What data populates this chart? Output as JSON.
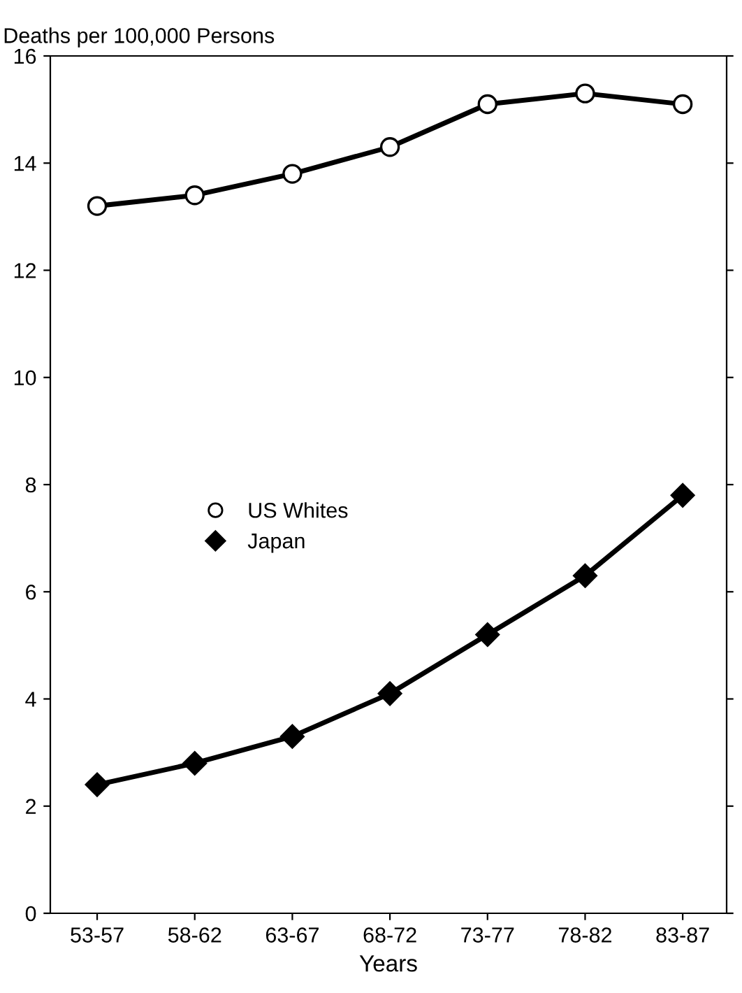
{
  "chart_data": {
    "type": "line",
    "ylabel": "Deaths per 100,000 Persons",
    "xlabel": "Years",
    "categories": [
      "53-57",
      "58-62",
      "63-67",
      "68-72",
      "73-77",
      "78-82",
      "83-87"
    ],
    "series": [
      {
        "name": "US Whites",
        "color": "#000000",
        "marker": "circle",
        "values": [
          13.2,
          13.4,
          13.8,
          14.3,
          15.1,
          15.3,
          15.1
        ]
      },
      {
        "name": "Japan",
        "color": "#000000",
        "marker": "diamond",
        "values": [
          2.4,
          2.8,
          3.3,
          4.1,
          5.2,
          6.3,
          7.8
        ]
      }
    ],
    "ylim": [
      0,
      16
    ],
    "yticks": [
      0,
      2,
      4,
      6,
      8,
      10,
      12,
      14,
      16
    ],
    "grid": false,
    "legend": "center left",
    "line_style": "solid"
  }
}
